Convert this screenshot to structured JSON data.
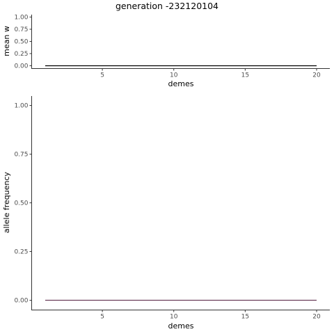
{
  "title": "generation -232120104",
  "chart_data": [
    {
      "type": "line",
      "xlabel": "demes",
      "ylabel": "mean w",
      "xlim": [
        1,
        20
      ],
      "ylim": [
        0,
        1
      ],
      "x_ticks": [
        5,
        10,
        15,
        20
      ],
      "x_tick_labels": [
        "5",
        "10",
        "15",
        "20"
      ],
      "y_ticks": [
        0,
        0.25,
        0.5,
        0.75,
        1
      ],
      "y_tick_labels": [
        "0.00",
        "0.25",
        "0.50",
        "0.75",
        "1.00"
      ],
      "grid": false,
      "series": [
        {
          "color": "#000000",
          "x": [
            1,
            20
          ],
          "y": [
            0,
            0
          ]
        }
      ]
    },
    {
      "type": "line",
      "xlabel": "demes",
      "ylabel": "allele frequency",
      "xlim": [
        1,
        20
      ],
      "ylim": [
        0,
        1
      ],
      "x_ticks": [
        5,
        10,
        15,
        20
      ],
      "x_tick_labels": [
        "5",
        "10",
        "15",
        "20"
      ],
      "y_ticks": [
        0,
        0.25,
        0.5,
        0.75,
        1
      ],
      "y_tick_labels": [
        "0.00",
        "0.25",
        "0.50",
        "0.75",
        "1.00"
      ],
      "grid": false,
      "series": [
        {
          "color": "#6a3d5a",
          "x": [
            1,
            20
          ],
          "y": [
            0,
            0
          ]
        }
      ]
    }
  ]
}
